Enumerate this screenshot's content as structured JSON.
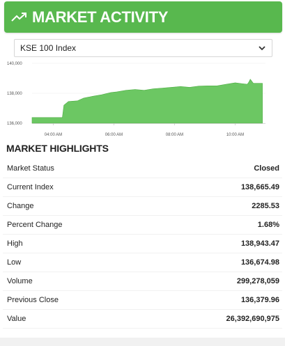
{
  "header": {
    "title": "MARKET ACTIVITY",
    "icon": "trend-up-icon"
  },
  "selector": {
    "selected": "KSE 100 Index"
  },
  "chart_data": {
    "type": "area",
    "color": "#6cc763",
    "yticks": [
      "140,000",
      "138,000",
      "136,000"
    ],
    "ylim": [
      136000,
      140000
    ],
    "xticks": [
      "04:00 AM",
      "06:00 AM",
      "08:00 AM",
      "10:00 AM"
    ],
    "xlim": [
      3.3,
      11.0
    ],
    "x": [
      3.3,
      4.3,
      4.35,
      4.5,
      4.8,
      5.0,
      5.3,
      5.6,
      5.9,
      6.1,
      6.4,
      6.7,
      7.0,
      7.3,
      7.6,
      7.9,
      8.2,
      8.5,
      8.8,
      9.1,
      9.4,
      9.7,
      10.0,
      10.2,
      10.4,
      10.45,
      10.5,
      10.6,
      10.9
    ],
    "y": [
      136380,
      136380,
      137200,
      137450,
      137500,
      137680,
      137800,
      137900,
      138050,
      138100,
      138200,
      138250,
      138200,
      138300,
      138350,
      138400,
      138450,
      138400,
      138480,
      138500,
      138500,
      138600,
      138700,
      138650,
      138600,
      138750,
      138940,
      138665,
      138665
    ]
  },
  "highlights": {
    "title": "MARKET HIGHLIGHTS",
    "rows": [
      {
        "label": "Market Status",
        "value": "Closed"
      },
      {
        "label": "Current Index",
        "value": "138,665.49"
      },
      {
        "label": "Change",
        "value": "2285.53"
      },
      {
        "label": "Percent Change",
        "value": "1.68%"
      },
      {
        "label": "High",
        "value": "138,943.47"
      },
      {
        "label": "Low",
        "value": "136,674.98"
      },
      {
        "label": "Volume",
        "value": "299,278,059"
      },
      {
        "label": "Previous Close",
        "value": "136,379.96"
      },
      {
        "label": "Value",
        "value": "26,392,690,975"
      }
    ]
  }
}
